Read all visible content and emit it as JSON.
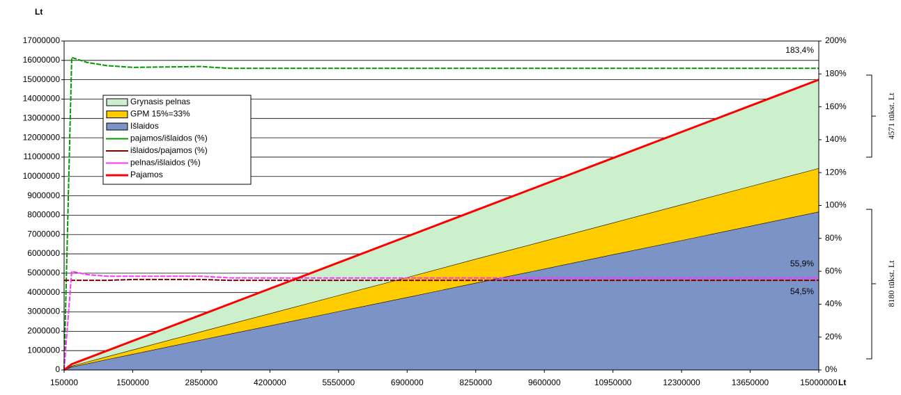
{
  "chart_data": {
    "type": "stacked-area-line",
    "y_label": "Lt",
    "x_label": "Lt",
    "x": [
      150000,
      300000,
      600000,
      1000000,
      1500000,
      2850000,
      3400000,
      4200000,
      5550000,
      6900000,
      8250000,
      9600000,
      10950000,
      12300000,
      13650000,
      15000000
    ],
    "xlim": [
      150000,
      15000000
    ],
    "xticks": [
      150000,
      1500000,
      2850000,
      4200000,
      5550000,
      6900000,
      8250000,
      9600000,
      10950000,
      12300000,
      13650000,
      15000000
    ],
    "ylim": [
      0,
      17000000
    ],
    "yticks": [
      0,
      1000000,
      2000000,
      3000000,
      4000000,
      5000000,
      6000000,
      7000000,
      8000000,
      9000000,
      10000000,
      11000000,
      12000000,
      13000000,
      14000000,
      15000000,
      16000000,
      17000000
    ],
    "y2lim": [
      0,
      200
    ],
    "y2ticks": [
      {
        "value": 0,
        "label": "0%"
      },
      {
        "value": 20,
        "label": "20%"
      },
      {
        "value": 40,
        "label": "40%"
      },
      {
        "value": 60,
        "label": "60%"
      },
      {
        "value": 80,
        "label": "80%"
      },
      {
        "value": 100,
        "label": "100%"
      },
      {
        "value": 120,
        "label": "120%"
      },
      {
        "value": 140,
        "label": "140%"
      },
      {
        "value": 160,
        "label": "160%"
      },
      {
        "value": 180,
        "label": "180%"
      },
      {
        "value": 200,
        "label": "200%"
      }
    ],
    "grid": true,
    "legend": "upper left",
    "series": [
      {
        "name": "Grynasis pelnas",
        "kind": "area",
        "color": "#ccf0cc",
        "values": [
          0,
          90000,
          180000,
          300000,
          455000,
          860000,
          1030000,
          1280000,
          1690000,
          2110000,
          2510000,
          2930000,
          3340000,
          3750000,
          4160000,
          4571000
        ]
      },
      {
        "name": "GPM 15%=33%",
        "kind": "area",
        "color": "#ffcc00",
        "values": [
          0,
          45000,
          90000,
          150000,
          225000,
          430000,
          510000,
          630000,
          830000,
          1030000,
          1240000,
          1440000,
          1640000,
          1850000,
          2050000,
          2249000
        ]
      },
      {
        "name": "Išlaidos",
        "kind": "area",
        "color": "#7b93c6",
        "values": [
          0,
          165000,
          330000,
          550000,
          820000,
          1560000,
          1860000,
          2290000,
          3030000,
          3760000,
          4500000,
          5230000,
          5970000,
          6700000,
          7440000,
          8180000
        ]
      },
      {
        "name": "pajamos/išlaidos (%)",
        "kind": "line",
        "axis": "y2",
        "color": "#009900",
        "values": [
          0,
          190,
          187,
          185,
          184,
          184.5,
          183.4,
          183.4,
          183.4,
          183.4,
          183.4,
          183.4,
          183.4,
          183.4,
          183.4,
          183.4
        ]
      },
      {
        "name": "išlaidos/pajamos (%)",
        "kind": "line",
        "axis": "y2",
        "color": "#800000",
        "values": [
          54.5,
          54.5,
          54.5,
          54.5,
          55,
          55,
          54.5,
          54.5,
          54.5,
          54.5,
          54.5,
          54.5,
          54.5,
          54.5,
          54.5,
          54.5
        ]
      },
      {
        "name": "pelnas/išlaidos (%)",
        "kind": "line",
        "axis": "y2",
        "color": "#ff33ff",
        "values": [
          0,
          60,
          58,
          57,
          57,
          57,
          56,
          55.9,
          55.9,
          55.9,
          55.9,
          55.9,
          55.9,
          55.9,
          55.9,
          55.9
        ]
      },
      {
        "name": "Pajamos",
        "kind": "line",
        "color": "#ff0000",
        "values": [
          0,
          300000,
          600000,
          1000000,
          1500000,
          2850000,
          3400000,
          4200000,
          5550000,
          6900000,
          8250000,
          9600000,
          10950000,
          12300000,
          13650000,
          15000000
        ]
      }
    ],
    "annotations": [
      "183,4%",
      "55,9%",
      "54,5%",
      "4571 tūkst. Lt",
      "8180 tūkst. Lt"
    ]
  }
}
